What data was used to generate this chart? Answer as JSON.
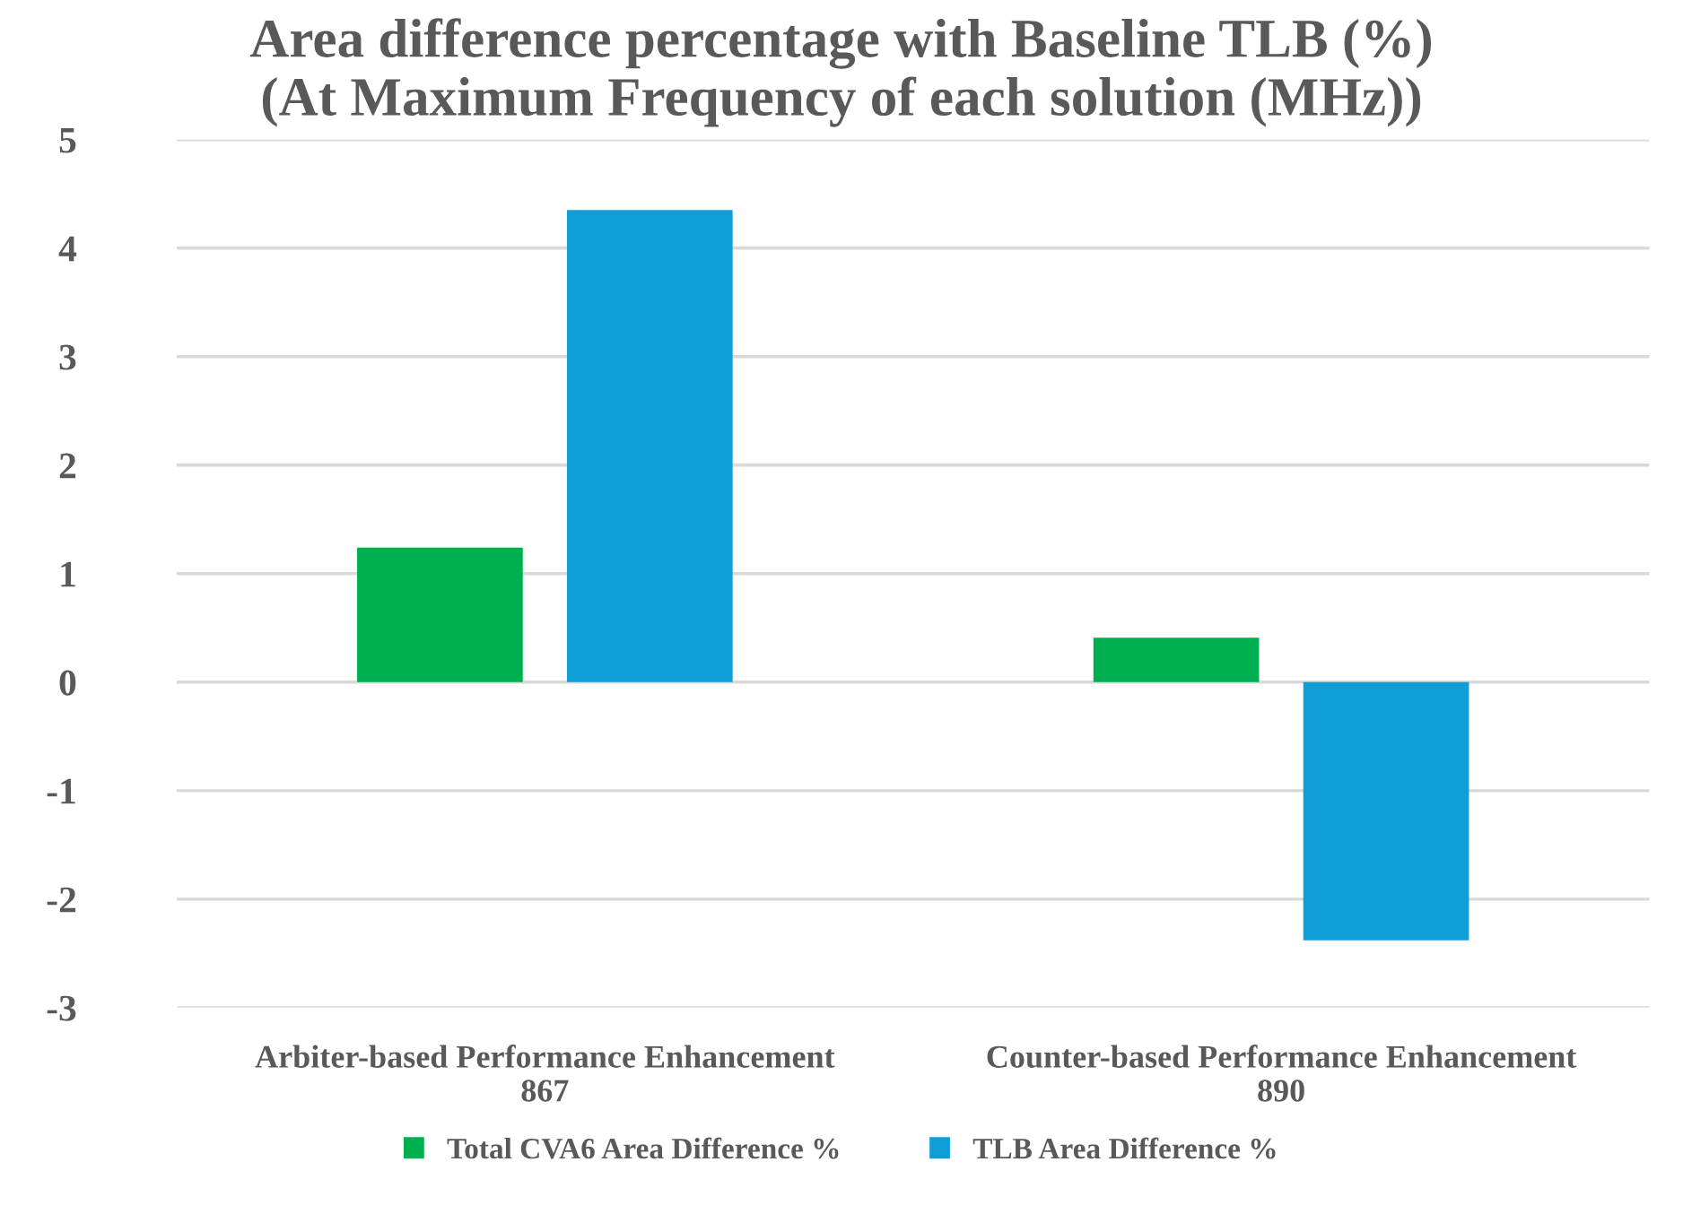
{
  "chart_data": {
    "type": "bar",
    "title": "Area difference percentage with Baseline TLB (%)\n(At Maximum Frequency of each solution (MHz))",
    "categories": [
      "Arbiter-based Performance Enhancement\n867",
      "Counter-based Performance Enhancement\n890"
    ],
    "series": [
      {
        "name": "Total CVA6 Area Difference %",
        "color": "#00b050",
        "values": [
          1.24,
          0.41
        ]
      },
      {
        "name": "TLB Area Difference %",
        "color": "#119dd6",
        "values": [
          4.35,
          -2.38
        ]
      }
    ],
    "ylim": [
      -3,
      5
    ],
    "yticks": [
      {
        "value": -3,
        "label": "-3"
      },
      {
        "value": -2,
        "label": "-2"
      },
      {
        "value": -1,
        "label": "-1"
      },
      0,
      1,
      2,
      3,
      4,
      5
    ],
    "grid": "y",
    "legend": "bottom"
  }
}
